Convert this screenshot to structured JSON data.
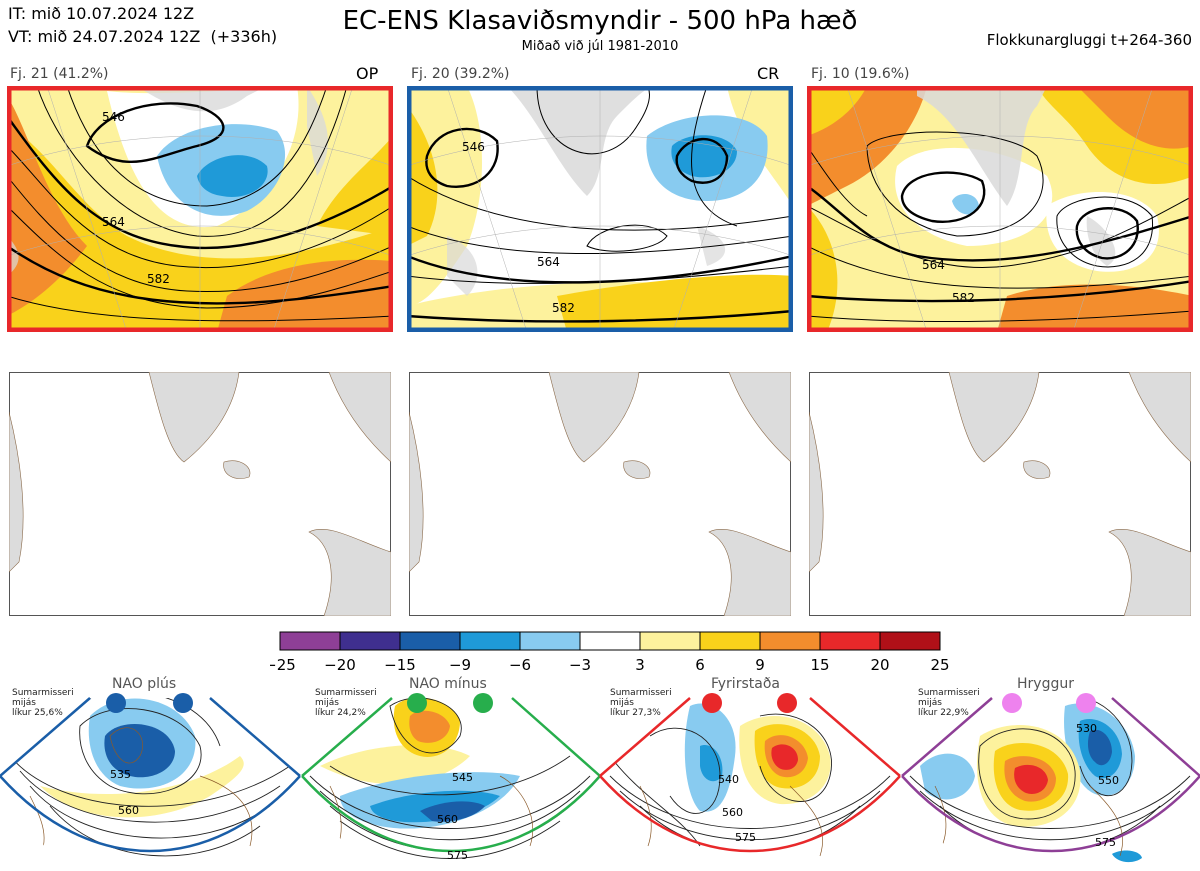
{
  "header": {
    "it_line": "IT: mið 10.07.2024 12Z",
    "vt_line": "VT: mið 24.07.2024 12Z  (+336h)",
    "title": "EC-ENS Klasaviðsmyndir - 500 hPa hæð",
    "subtitle": "Miðað við júl 1981-2010",
    "window": "Flokkunargluggi t+264-360"
  },
  "clusters": [
    {
      "label": "Fj. 21 (41.2%)",
      "tag": "OP",
      "frame_color": "#e8282a",
      "contours": [
        "546",
        "564",
        "582"
      ]
    },
    {
      "label": "Fj. 20 (39.2%)",
      "tag": "CR",
      "frame_color": "#1a5ea8",
      "contours": [
        "546",
        "564",
        "582"
      ]
    },
    {
      "label": "Fj. 10 (19.6%)",
      "tag": "",
      "frame_color": "#e8282a",
      "contours": [
        "564",
        "582"
      ]
    }
  ],
  "colorbar": {
    "ticks": [
      "−25",
      "−20",
      "−15",
      "−9",
      "−6",
      "−3",
      "3",
      "6",
      "9",
      "15",
      "20",
      "25"
    ],
    "colors": [
      "#8e3f96",
      "#3f2f8f",
      "#1a5ea8",
      "#1f9ad8",
      "#88cbf0",
      "#ffffff",
      "#fdf29d",
      "#f9d21b",
      "#f38d2d",
      "#e8282a",
      "#b01018"
    ]
  },
  "regimes": [
    {
      "name": "NAO plús",
      "info": [
        "Sumarmisseri",
        "mijás",
        "líkur 25,6%"
      ],
      "color": "#1a5ea8",
      "contours": [
        "535",
        "560"
      ]
    },
    {
      "name": "NAO mínus",
      "info": [
        "Sumarmisseri",
        "mijás",
        "líkur 24,2%"
      ],
      "color": "#27ae4c",
      "contours": [
        "545",
        "560",
        "575"
      ]
    },
    {
      "name": "Fyrirstaða",
      "info": [
        "Sumarmisseri",
        "mijás",
        "líkur 27,3%"
      ],
      "color": "#e8282a",
      "contours": [
        "540",
        "560",
        "575"
      ]
    },
    {
      "name": "Hryggur",
      "info": [
        "Sumarmisseri",
        "mijás",
        "líkur 22,9%"
      ],
      "color": "#8e3f96",
      "contours": [
        "530",
        "550",
        "575"
      ]
    }
  ]
}
